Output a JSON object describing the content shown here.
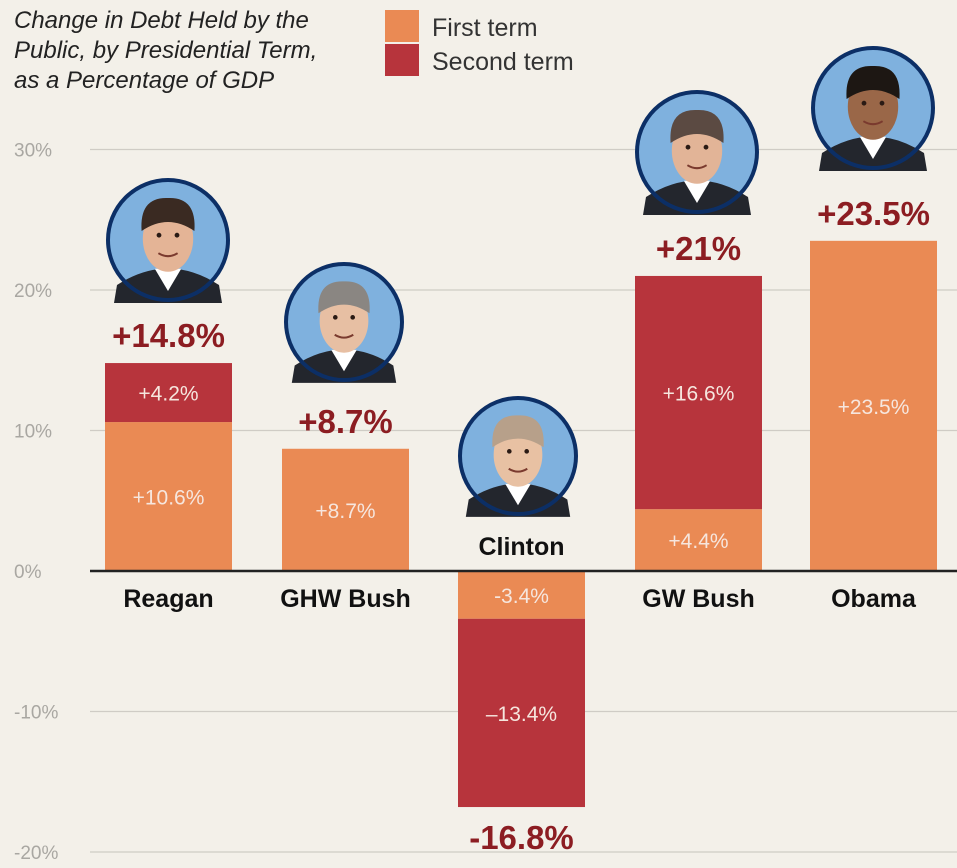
{
  "title": {
    "line1": "Change in Debt Held by the",
    "line2": "Public, by Presidential Term,",
    "line3": "as a Percentage of GDP"
  },
  "legend": {
    "first": "First term",
    "second": "Second term"
  },
  "colors": {
    "first_term": "#ea8a54",
    "second_term": "#b7343c",
    "total_label": "#8c1d22",
    "background": "#f3f0e9"
  },
  "chart_data": {
    "type": "bar",
    "stacked": true,
    "categories": [
      "Reagan",
      "GHW Bush",
      "Clinton",
      "GW Bush",
      "Obama"
    ],
    "series": [
      {
        "name": "First term",
        "values": [
          10.6,
          8.7,
          -3.4,
          4.4,
          23.5
        ],
        "labels": [
          "+10.6%",
          "+8.7%",
          "-3.4%",
          "+4.4%",
          "+23.5%"
        ]
      },
      {
        "name": "Second term",
        "values": [
          4.2,
          null,
          -13.4,
          16.6,
          null
        ],
        "labels": [
          "+4.2%",
          "",
          "–13.4%",
          "+16.6%",
          ""
        ]
      }
    ],
    "totals": [
      14.8,
      8.7,
      -16.8,
      21,
      23.5
    ],
    "total_labels": [
      "+14.8%",
      "+8.7%",
      "-16.8%",
      "+21%",
      "+23.5%"
    ],
    "yticks": [
      "30%",
      "20%",
      "10%",
      "0%",
      "-10%",
      "-20%"
    ],
    "ytick_values": [
      30,
      20,
      10,
      0,
      -10,
      -20
    ],
    "ylim": [
      -20,
      30
    ],
    "grid": true,
    "legend_position": "top-center",
    "portraits": [
      "reagan-portrait",
      "ghw-bush-portrait",
      "clinton-portrait",
      "gw-bush-portrait",
      "obama-portrait"
    ]
  }
}
